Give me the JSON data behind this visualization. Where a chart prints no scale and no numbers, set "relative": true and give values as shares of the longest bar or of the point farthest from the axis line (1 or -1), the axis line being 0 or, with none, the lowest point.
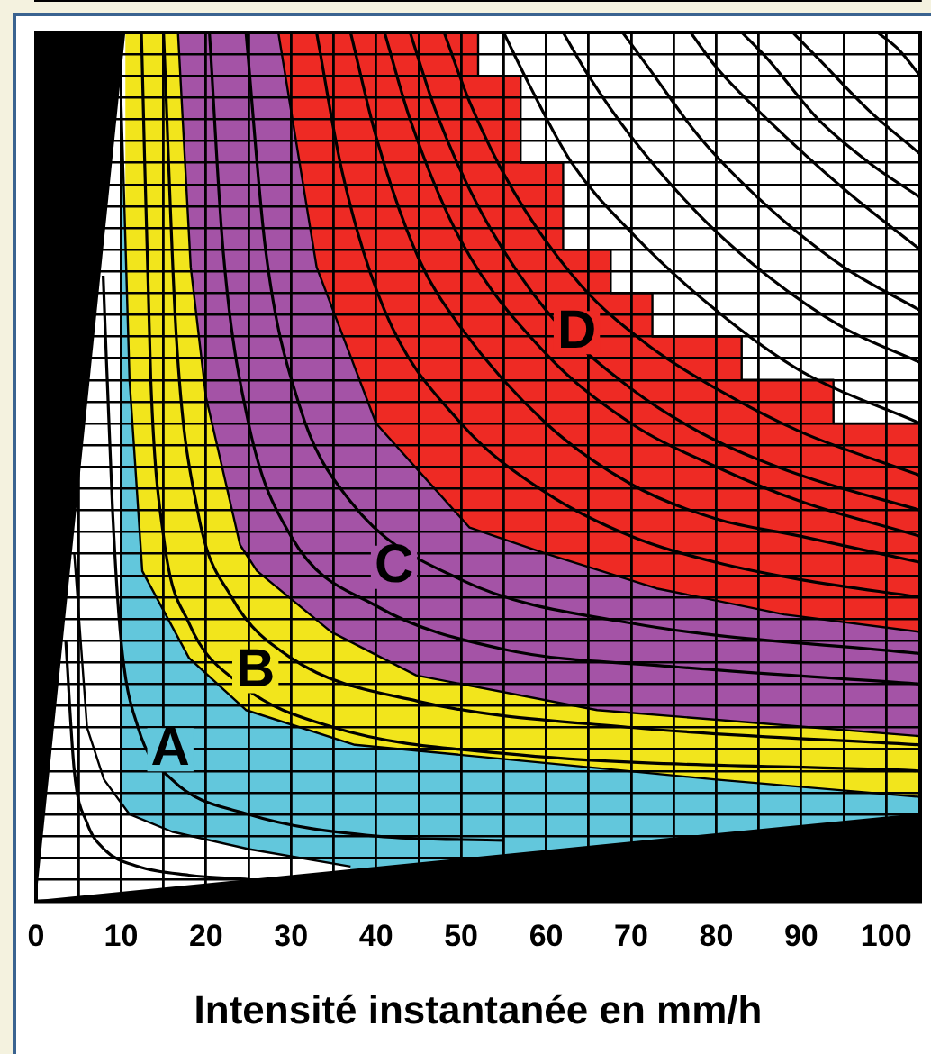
{
  "chart_data": {
    "type": "area",
    "xlabel": "Intensité instantanée en mm/h",
    "relative": true,
    "xlim": [
      0,
      104
    ],
    "xticks": [
      0,
      {
        "value": 5,
        "label": null
      },
      10,
      {
        "value": 15,
        "label": null
      },
      20,
      {
        "value": 25,
        "label": null
      },
      30,
      {
        "value": 35,
        "label": null
      },
      40,
      {
        "value": 45,
        "label": null
      },
      50,
      {
        "value": 55,
        "label": null
      },
      60,
      {
        "value": 65,
        "label": null
      },
      70,
      {
        "value": 75,
        "label": null
      },
      80,
      {
        "value": 85,
        "label": null
      },
      90,
      {
        "value": 95,
        "label": null
      },
      100
    ],
    "grid": true,
    "legend": false,
    "tick_labels": "x",
    "marker": "none",
    "series": [
      {
        "name": "D",
        "color": "#ee2a24",
        "x": [
          28.5,
          52,
          52,
          57,
          57,
          62,
          62,
          67.6,
          67.6,
          72.5,
          72.5,
          83,
          83,
          93.8,
          93.8,
          104
        ],
        "values": [
          1,
          1,
          0.95,
          0.95,
          0.85,
          0.85,
          0.75,
          0.75,
          0.7,
          0.7,
          0.65,
          0.65,
          0.6,
          0.6,
          0.55,
          0.55
        ]
      },
      {
        "name": "C",
        "color": "#a453a6",
        "x": [
          16.7,
          28.5,
          33,
          40,
          51,
          60,
          73,
          88,
          104
        ],
        "values": [
          1,
          1,
          0.73,
          0.55,
          0.43,
          0.4,
          0.36,
          0.33,
          0.31
        ]
      },
      {
        "name": "B",
        "color": "#f2e51c",
        "x": [
          10.5,
          16.7,
          18.2,
          20,
          24,
          26,
          34.7,
          44.7,
          66,
          104
        ],
        "values": [
          1,
          1,
          0.73,
          0.58,
          0.41,
          0.38,
          0.31,
          0.26,
          0.22,
          0.19
        ]
      },
      {
        "name": "A",
        "color": "#62c7dc",
        "x": [
          10,
          11,
          12.5,
          18,
          24.7,
          37.5,
          59,
          80,
          104
        ],
        "values": [
          0.93,
          0.6,
          0.38,
          0.28,
          0.22,
          0.18,
          0.16,
          0.14,
          0.12
        ]
      },
      {
        "color": "#ffffff",
        "x": [
          4.5,
          6,
          8,
          11,
          16,
          25,
          37
        ],
        "values": [
          0.4,
          0.2,
          0.14,
          0.1,
          0.08,
          0.06,
          0.04
        ]
      },
      {
        "color": "#000000",
        "x": [
          0,
          104
        ],
        "values": [
          0,
          0.1
        ]
      },
      {
        "type": "line",
        "color": "#000000",
        "x": [
          3.5,
          4.5,
          6,
          8,
          12,
          18,
          25
        ],
        "values": [
          0.3,
          0.15,
          0.09,
          0.06,
          0.04,
          0.03,
          0.025
        ]
      },
      {
        "type": "line",
        "color": "#000000",
        "x": [
          7.9,
          9,
          10,
          12,
          16,
          25,
          40,
          55
        ],
        "values": [
          0.72,
          0.45,
          0.3,
          0.2,
          0.14,
          0.1,
          0.075,
          0.07
        ]
      },
      {
        "type": "line",
        "color": "#000000",
        "x": [
          12.4,
          13.5,
          15,
          18,
          24,
          35,
          55,
          104
        ],
        "values": [
          1,
          0.6,
          0.42,
          0.32,
          0.25,
          0.2,
          0.17,
          0.15
        ]
      },
      {
        "type": "line",
        "color": "#000000",
        "x": [
          15,
          16.5,
          19,
          23,
          30,
          45,
          70,
          104
        ],
        "values": [
          1,
          0.65,
          0.45,
          0.35,
          0.28,
          0.23,
          0.2,
          0.18
        ]
      },
      {
        "type": "line",
        "color": "#000000",
        "x": [
          20.4,
          22,
          25,
          30,
          40,
          55,
          75,
          104
        ],
        "values": [
          1,
          0.75,
          0.55,
          0.42,
          0.34,
          0.29,
          0.27,
          0.25
        ]
      },
      {
        "type": "line",
        "color": "#000000",
        "x": [
          24.7,
          27,
          31,
          37,
          50,
          70,
          104
        ],
        "values": [
          1,
          0.75,
          0.57,
          0.46,
          0.37,
          0.32,
          0.285
        ]
      },
      {
        "type": "line",
        "color": "#000000",
        "x": [
          33,
          36,
          41,
          50,
          60,
          70,
          80,
          90,
          104
        ],
        "values": [
          1,
          0.84,
          0.68,
          0.55,
          0.47,
          0.42,
          0.39,
          0.37,
          0.35
        ]
      },
      {
        "type": "line",
        "color": "#000000",
        "x": [
          37,
          40,
          45,
          50,
          60,
          70,
          80,
          90,
          104
        ],
        "values": [
          1,
          0.88,
          0.74,
          0.66,
          0.55,
          0.48,
          0.44,
          0.42,
          0.39
        ]
      },
      {
        "type": "line",
        "color": "#000000",
        "x": [
          41,
          44,
          50,
          60,
          70,
          80,
          90,
          104
        ],
        "values": [
          1,
          0.9,
          0.76,
          0.63,
          0.55,
          0.5,
          0.46,
          0.42
        ]
      },
      {
        "type": "line",
        "color": "#000000",
        "x": [
          44,
          47,
          52,
          60,
          70,
          80,
          90,
          104
        ],
        "values": [
          1,
          0.91,
          0.8,
          0.68,
          0.59,
          0.53,
          0.49,
          0.45
        ]
      },
      {
        "type": "line",
        "color": "#000000",
        "x": [
          48,
          51,
          56,
          64,
          72,
          80,
          90,
          104
        ],
        "values": [
          1,
          0.92,
          0.82,
          0.71,
          0.64,
          0.59,
          0.54,
          0.49
        ]
      },
      {
        "type": "line",
        "color": "#000000",
        "x": [
          55,
          58,
          63,
          70,
          80,
          90,
          104
        ],
        "values": [
          1,
          0.94,
          0.85,
          0.77,
          0.68,
          0.61,
          0.55
        ]
      },
      {
        "type": "line",
        "color": "#000000",
        "x": [
          62,
          65,
          70,
          78,
          86,
          95,
          104
        ],
        "values": [
          1,
          0.95,
          0.88,
          0.79,
          0.72,
          0.66,
          0.62
        ]
      },
      {
        "type": "line",
        "color": "#000000",
        "x": [
          69,
          72,
          78,
          86,
          95,
          104
        ],
        "values": [
          1,
          0.96,
          0.88,
          0.8,
          0.73,
          0.68
        ]
      },
      {
        "type": "line",
        "color": "#000000",
        "x": [
          77,
          80,
          86,
          95,
          104
        ],
        "values": [
          1,
          0.96,
          0.9,
          0.82,
          0.75
        ]
      },
      {
        "type": "line",
        "color": "#000000",
        "x": [
          83,
          86,
          92,
          98,
          104
        ],
        "values": [
          1,
          0.97,
          0.9,
          0.85,
          0.81
        ]
      },
      {
        "type": "line",
        "color": "#000000",
        "x": [
          89,
          92,
          98,
          104
        ],
        "values": [
          1,
          0.97,
          0.91,
          0.86
        ]
      },
      {
        "type": "line",
        "color": "#000000",
        "x": [
          99,
          101.5,
          104
        ],
        "values": [
          1,
          0.98,
          0.95
        ]
      }
    ]
  }
}
